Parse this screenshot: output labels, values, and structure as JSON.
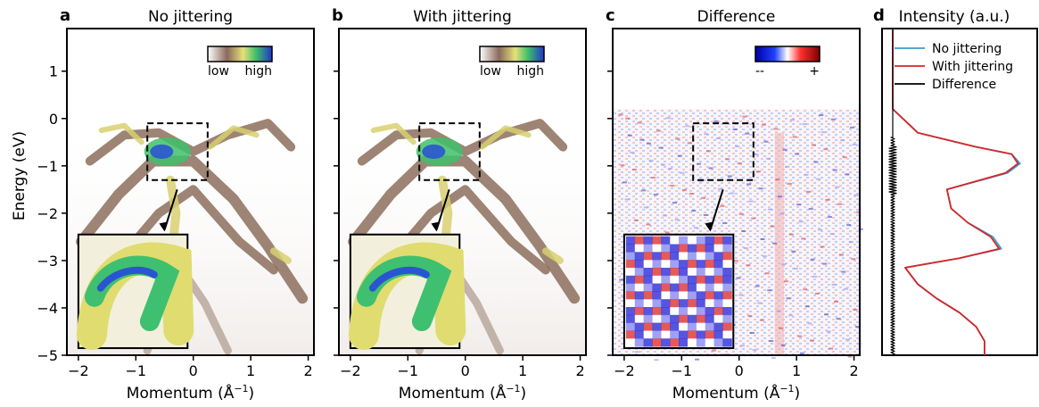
{
  "chart_data": [
    {
      "type": "heatmap",
      "panel_label": "a",
      "title": "No jittering",
      "xlabel_main": "Momentum (Å",
      "xlabel_sup": "−1",
      "xlabel_end": ")",
      "ylabel": "Energy (eV)",
      "xlim": [
        -2.2,
        2.1
      ],
      "ylim": [
        -5,
        1.9
      ],
      "xticks": [
        "−2",
        "−1",
        "0",
        "1",
        "2"
      ],
      "xtick_values": [
        -2,
        -1,
        0,
        1,
        2
      ],
      "yticks": [
        "1",
        "0",
        "−1",
        "−2",
        "−3",
        "−4",
        "−5"
      ],
      "ytick_values": [
        1,
        0,
        -1,
        -2,
        -3,
        -4,
        -5
      ],
      "colorbar": {
        "low_label": "low",
        "high_label": "high"
      },
      "inset_box": {
        "kx": [
          -0.8,
          0.25
        ],
        "energy": [
          -1.3,
          -0.1
        ]
      }
    },
    {
      "type": "heatmap",
      "panel_label": "b",
      "title": "With jittering",
      "xlabel_main": "Momentum (Å",
      "xlabel_sup": "−1",
      "xlabel_end": ")",
      "xlim": [
        -2.2,
        2.1
      ],
      "ylim": [
        -5,
        1.9
      ],
      "xticks": [
        "−2",
        "−1",
        "0",
        "1",
        "2"
      ],
      "xtick_values": [
        -2,
        -1,
        0,
        1,
        2
      ],
      "colorbar": {
        "low_label": "low",
        "high_label": "high"
      },
      "inset_box": {
        "kx": [
          -0.8,
          0.25
        ],
        "energy": [
          -1.3,
          -0.1
        ]
      }
    },
    {
      "type": "heatmap",
      "panel_label": "c",
      "title": "Difference",
      "xlabel_main": "Momentum (Å",
      "xlabel_sup": "−1",
      "xlabel_end": ")",
      "xlim": [
        -2.2,
        2.1
      ],
      "ylim": [
        -5,
        1.9
      ],
      "xticks": [
        "−2",
        "−1",
        "0",
        "1",
        "2"
      ],
      "xtick_values": [
        -2,
        -1,
        0,
        1,
        2
      ],
      "colorbar": {
        "low_label": "--",
        "high_label": "+"
      },
      "inset_box": {
        "kx": [
          -0.8,
          0.25
        ],
        "energy": [
          -1.3,
          -0.1
        ]
      }
    },
    {
      "type": "line",
      "panel_label": "d",
      "title": "Intensity (a.u.)",
      "ylim": [
        -5,
        1.9
      ],
      "legend_position": "top-right",
      "series": [
        {
          "name": "No jittering",
          "color": "#3a9cc8",
          "energy": [
            1.9,
            0.2,
            -0.3,
            -0.6,
            -0.75,
            -0.95,
            -1.15,
            -1.5,
            -1.9,
            -2.2,
            -2.5,
            -2.75,
            -2.95,
            -3.15,
            -3.5,
            -3.8,
            -4.1,
            -4.4,
            -4.7,
            -5.0
          ],
          "intensity": [
            0,
            0,
            0.12,
            0.4,
            0.57,
            0.61,
            0.55,
            0.26,
            0.28,
            0.36,
            0.48,
            0.52,
            0.32,
            0.06,
            0.12,
            0.21,
            0.32,
            0.4,
            0.44,
            0.44
          ]
        },
        {
          "name": "With jittering",
          "color": "#d62728",
          "energy": [
            1.9,
            0.2,
            -0.3,
            -0.6,
            -0.75,
            -0.95,
            -1.15,
            -1.5,
            -1.9,
            -2.2,
            -2.5,
            -2.75,
            -2.95,
            -3.15,
            -3.5,
            -3.8,
            -4.1,
            -4.4,
            -4.7,
            -5.0
          ],
          "intensity": [
            0,
            0,
            0.12,
            0.4,
            0.57,
            0.6,
            0.54,
            0.26,
            0.28,
            0.36,
            0.47,
            0.51,
            0.32,
            0.06,
            0.12,
            0.21,
            0.32,
            0.4,
            0.44,
            0.44
          ]
        },
        {
          "name": "Difference",
          "color": "#000000",
          "energy": [
            -0.4,
            -5.0
          ],
          "intensity": [
            0,
            0
          ],
          "note_style": "oscillating"
        }
      ]
    }
  ]
}
